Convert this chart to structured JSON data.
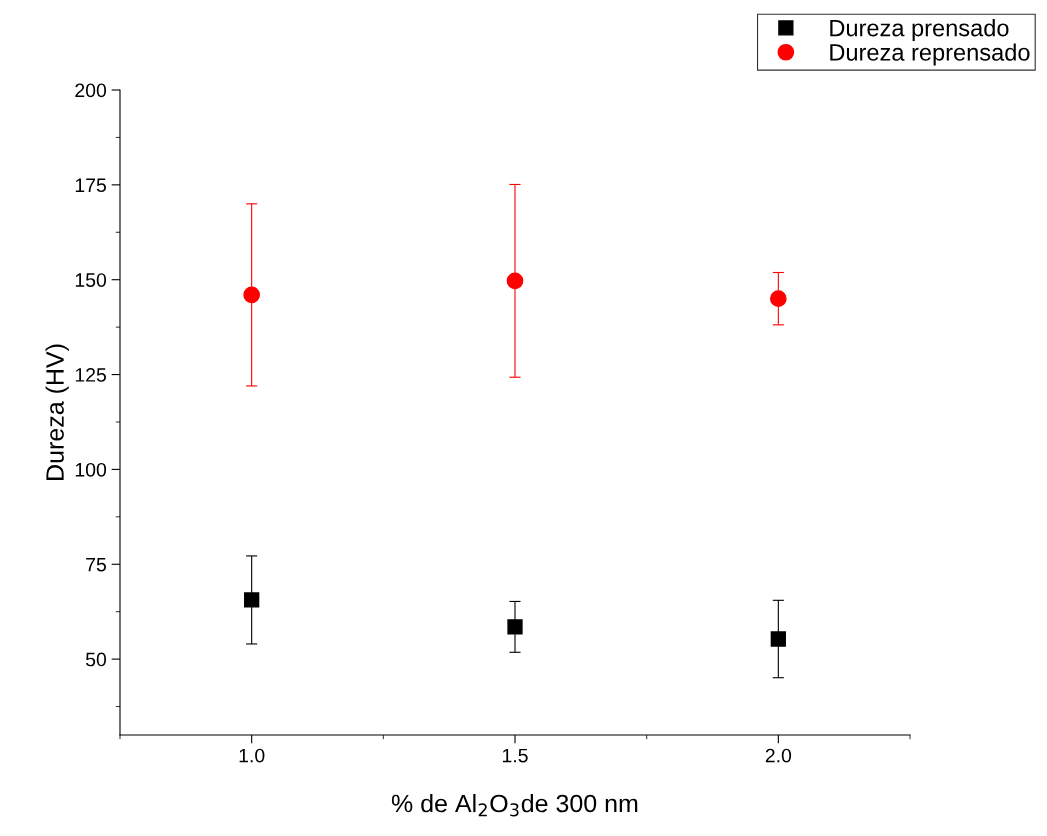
{
  "chart_data": {
    "type": "scatter",
    "xlabel": "% de Al$_{2}$O$_{3}$de 300 nm",
    "ylabel": "Dureza (HV)",
    "x": [
      1.0,
      1.5,
      2.0
    ],
    "series": [
      {
        "name": "Dureza prensado",
        "color": "#000000",
        "marker": "square",
        "values": [
          65.6,
          58.5,
          55.3
        ],
        "errors": [
          11.6,
          6.7,
          10.2
        ]
      },
      {
        "name": "Dureza reprensado",
        "color": "#ff0000",
        "marker": "circle",
        "values": [
          146.0,
          149.7,
          145.0
        ],
        "errors": [
          24.0,
          25.4,
          6.9
        ]
      }
    ],
    "xlim": [
      0.75,
      2.25
    ],
    "xticks": [
      {
        "value": 1,
        "label": "1.0"
      },
      {
        "value": 1.5,
        "label": "1.5"
      },
      {
        "value": 2,
        "label": "2.0"
      }
    ],
    "ylim": [
      30,
      200
    ],
    "yticks": [
      50,
      75,
      100,
      125,
      150,
      175,
      200
    ],
    "grid": false,
    "legend": "top right"
  }
}
